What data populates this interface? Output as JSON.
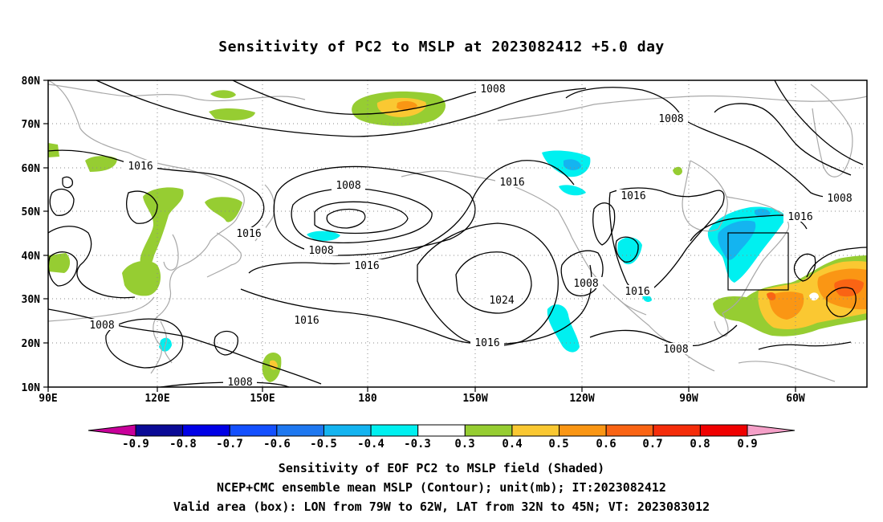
{
  "title": "Sensitivity of PC2 to MSLP at 2023082412 +5.0 day",
  "lat_labels": [
    "80N",
    "70N",
    "60N",
    "50N",
    "40N",
    "30N",
    "20N",
    "10N"
  ],
  "lon_labels": [
    "90E",
    "120E",
    "150E",
    "180",
    "150W",
    "120W",
    "90W",
    "60W"
  ],
  "contour_labels": [
    "1008",
    "1008",
    "1016",
    "1008",
    "1008",
    "1016",
    "1016",
    "1016",
    "1016",
    "1024",
    "1008",
    "1016",
    "1016",
    "1008",
    "1008",
    "1016",
    "1008",
    "1016",
    "1008"
  ],
  "colorbar": {
    "labels": [
      "-0.9",
      "-0.8",
      "-0.7",
      "-0.6",
      "-0.5",
      "-0.4",
      "-0.3",
      "0.3",
      "0.4",
      "0.5",
      "0.6",
      "0.7",
      "0.8",
      "0.9"
    ],
    "colors": [
      "#0a0a96",
      "#0000e6",
      "#1450ff",
      "#1e78f0",
      "#14b4f0",
      "#00f0f0",
      "#ffffff",
      "#96cd32",
      "#fac832",
      "#fa9614",
      "#fa6414",
      "#f52d0a",
      "#f00000"
    ],
    "low_end_color": "#c8009a",
    "high_end_color": "#f5a0c8"
  },
  "captions": [
    "Sensitivity of EOF PC2 to MSLP field (Shaded)",
    "NCEP+CMC ensemble mean MSLP (Contour); unit(mb); IT:2023082412",
    "Valid area (box): LON from 79W to 62W, LAT from 32N to 45N; VT: 2023083012"
  ]
}
